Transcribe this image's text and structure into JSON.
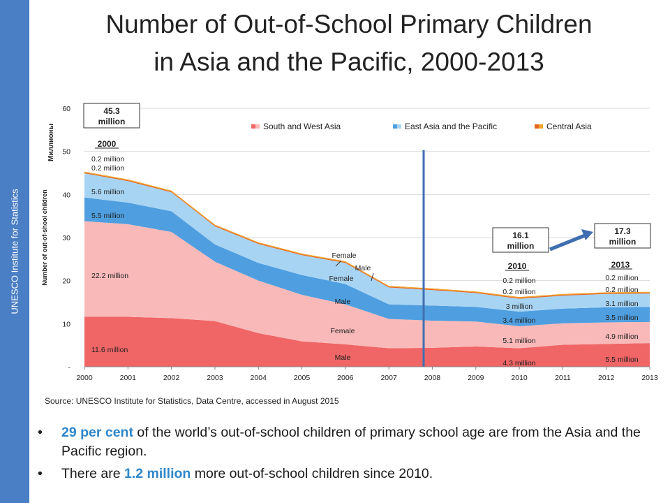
{
  "sidebar": {
    "text": "UNESCO Institute for Statistics"
  },
  "title": {
    "line1": "Number of Out-of-School Primary Children",
    "line2": "in Asia and the Pacific, 2000-2013"
  },
  "chart_data": {
    "type": "area",
    "stacked": true,
    "x": [
      2000,
      2001,
      2002,
      2003,
      2004,
      2005,
      2006,
      2007,
      2008,
      2009,
      2010,
      2011,
      2012,
      2013
    ],
    "xlim": [
      2000,
      2013
    ],
    "ylim": [
      0,
      60
    ],
    "yticks": [
      "-",
      "10",
      "20",
      "30",
      "40",
      "50",
      "60"
    ],
    "ytick_values": [
      0,
      10,
      20,
      30,
      40,
      50,
      60
    ],
    "ylabel": "Number of out-of-shool children",
    "yunit": "Миллионы",
    "grid": true,
    "legend_position": "top",
    "legend": [
      {
        "label": "South and West Asia",
        "colors": [
          "#f06565",
          "#f9b9b9"
        ]
      },
      {
        "label": "East Asia and the Pacific",
        "colors": [
          "#4f9fe0",
          "#a8d4f3"
        ]
      },
      {
        "label": "Central Asia",
        "colors": [
          "#e3661f",
          "#f3a42a"
        ]
      }
    ],
    "series": [
      {
        "name": "South and West Asia Male",
        "color": "#f06565",
        "values": [
          11.6,
          11.6,
          11.3,
          10.6,
          7.8,
          5.9,
          5.2,
          4.3,
          4.4,
          4.7,
          4.3,
          5.1,
          5.3,
          5.5
        ]
      },
      {
        "name": "South and West Asia Female",
        "color": "#f9b9b9",
        "values": [
          22.2,
          21.5,
          20.0,
          13.8,
          12.2,
          10.8,
          9.3,
          6.8,
          6.3,
          5.8,
          5.1,
          5.0,
          5.0,
          4.9
        ]
      },
      {
        "name": "East Asia and the Pacific Male",
        "color": "#4f9fe0",
        "values": [
          5.5,
          5.0,
          4.8,
          4.0,
          4.1,
          4.6,
          4.7,
          3.4,
          3.5,
          3.4,
          3.4,
          3.4,
          3.5,
          3.5
        ]
      },
      {
        "name": "East Asia and the Pacific Female",
        "color": "#a8d4f3",
        "values": [
          5.6,
          5.0,
          4.4,
          4.2,
          4.4,
          4.6,
          4.9,
          3.9,
          3.6,
          3.2,
          3.0,
          3.0,
          3.1,
          3.1
        ]
      },
      {
        "name": "Central Asia Male",
        "color": "#e3661f",
        "values": [
          0.2,
          0.2,
          0.2,
          0.2,
          0.2,
          0.2,
          0.2,
          0.2,
          0.2,
          0.2,
          0.2,
          0.2,
          0.2,
          0.2
        ]
      },
      {
        "name": "Central Asia Female",
        "color": "#f3a42a",
        "values": [
          0.2,
          0.2,
          0.2,
          0.2,
          0.2,
          0.2,
          0.2,
          0.2,
          0.2,
          0.2,
          0.2,
          0.2,
          0.2,
          0.2
        ]
      }
    ],
    "divider_x": 2007.8,
    "boxes": [
      {
        "value": "45.3",
        "unit": "million",
        "year_label": "2000"
      },
      {
        "value": "16.1",
        "unit": "million",
        "year_label": "2010"
      },
      {
        "value": "17.3",
        "unit": "million",
        "year_label": "2013"
      }
    ],
    "labels_2000": [
      "0.2 million",
      "0.2 million",
      "5.6 million",
      "5.5 million",
      "22.2 million",
      "11.6 million"
    ],
    "labels_2010": [
      "0.2 million",
      "0.2 million",
      "3 million",
      "3.4 million",
      "5.1 million",
      "4.3 million"
    ],
    "labels_2013": [
      "0.2 million",
      "0.2 million",
      "3.1 million",
      "3.5 million",
      "4.9 million",
      "5.5 million"
    ],
    "annotations": [
      "Female",
      "Male",
      "Female",
      "Male",
      "Female",
      "Male"
    ]
  },
  "source": "Source: UNESCO Institute for Statistics, Data Centre, accessed in August 2015",
  "bullets": [
    {
      "dot": "•",
      "highlight": "29 per cent",
      "rest": " of the world’s out-of-school children of primary school age are from the Asia and the Pacific region."
    },
    {
      "dot": "•",
      "pre": "There are ",
      "highlight": "1.2 million",
      "rest": " more out-of-school children since 2010."
    }
  ]
}
